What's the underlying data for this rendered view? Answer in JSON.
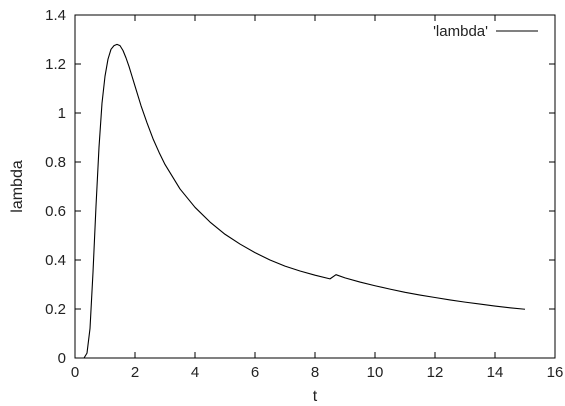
{
  "chart_data": {
    "type": "line",
    "xlabel": "t",
    "ylabel": "lambda",
    "xlim": [
      0,
      16
    ],
    "ylim": [
      0,
      1.4
    ],
    "xticks": [
      "0",
      "2",
      "4",
      "6",
      "8",
      "10",
      "12",
      "14",
      "16"
    ],
    "yticks": [
      "0",
      "0.2",
      "0.4",
      "0.6",
      "0.8",
      "1",
      "1.2",
      "1.4"
    ],
    "grid": false,
    "legend_position": "top-right",
    "series": [
      {
        "name": "'lambda'",
        "color": "#000000",
        "x": [
          0.3,
          0.4,
          0.5,
          0.6,
          0.7,
          0.8,
          0.9,
          1.0,
          1.1,
          1.2,
          1.3,
          1.4,
          1.5,
          1.6,
          1.7,
          1.8,
          1.9,
          2.0,
          2.2,
          2.4,
          2.6,
          2.8,
          3.0,
          3.5,
          4.0,
          4.5,
          5.0,
          5.5,
          6.0,
          6.5,
          7.0,
          7.5,
          8.0,
          8.5,
          8.7,
          9.0,
          9.5,
          10.0,
          10.5,
          11.0,
          11.5,
          12.0,
          12.5,
          13.0,
          13.5,
          14.0,
          14.5,
          15.0
        ],
        "y": [
          0.0,
          0.02,
          0.12,
          0.35,
          0.62,
          0.86,
          1.04,
          1.15,
          1.22,
          1.26,
          1.275,
          1.28,
          1.275,
          1.255,
          1.225,
          1.19,
          1.15,
          1.11,
          1.03,
          0.96,
          0.895,
          0.84,
          0.79,
          0.69,
          0.615,
          0.555,
          0.505,
          0.465,
          0.43,
          0.4,
          0.375,
          0.355,
          0.338,
          0.323,
          0.34,
          0.327,
          0.31,
          0.295,
          0.281,
          0.268,
          0.257,
          0.247,
          0.237,
          0.228,
          0.22,
          0.212,
          0.205,
          0.199
        ]
      }
    ]
  }
}
